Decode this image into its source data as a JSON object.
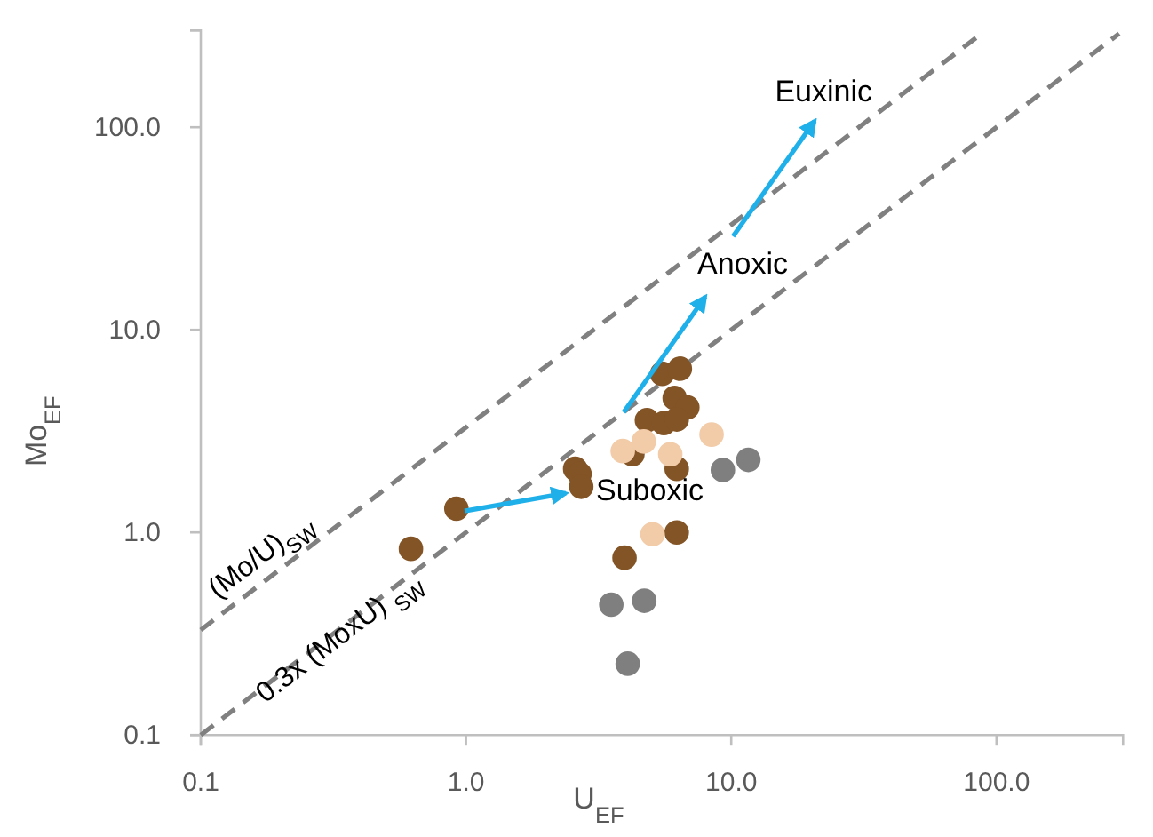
{
  "chart_data": {
    "type": "scatter",
    "xlabel": "U$_{EF}$",
    "ylabel": "Mo$_{EF}$",
    "log": "xy",
    "xlim": [
      0.1,
      300
    ],
    "ylim": [
      0.1,
      300
    ],
    "xticks": [
      0.1,
      {
        "value": 1,
        "label": "1.0"
      },
      {
        "value": 10,
        "label": "10.0"
      },
      {
        "value": 100,
        "label": "100.0"
      }
    ],
    "yticks": [
      0.1,
      {
        "value": 1,
        "label": "1.0"
      },
      {
        "value": 10,
        "label": "10.0"
      },
      {
        "value": 100,
        "label": "100.0"
      }
    ],
    "grid": false,
    "marker": "circle",
    "series": [
      {
        "type": "line",
        "name": "(Mo/U)$_{SW}$",
        "color": "#808080",
        "line_style": "dashed",
        "marker": "none",
        "x": [
          0.1,
          90
        ],
        "values": [
          0.33,
          297
        ]
      },
      {
        "type": "line",
        "name": "0.3x (MoxU) $_{SW}$",
        "color": "#808080",
        "line_style": "dashed",
        "marker": "none",
        "x": [
          0.1,
          290
        ],
        "values": [
          0.1,
          290
        ]
      },
      {
        "color": "#835426",
        "x": [
          0.62,
          0.92,
          2.58,
          2.68,
          2.72,
          3.96,
          4.24,
          4.81,
          5.49,
          6.4,
          6.12,
          6.83,
          5.57,
          6.23,
          6.23,
          6.23
        ],
        "values": [
          0.83,
          1.31,
          2.06,
          1.94,
          1.68,
          0.75,
          2.43,
          3.58,
          6.07,
          6.43,
          4.61,
          4.14,
          3.46,
          3.61,
          2.06,
          1.0
        ]
      },
      {
        "color": "#f2cba9",
        "x": [
          3.9,
          4.68,
          5.89,
          8.43,
          5.05
        ],
        "values": [
          2.52,
          2.81,
          2.43,
          3.04,
          0.98
        ]
      },
      {
        "color": "#7f7f7f",
        "x": [
          9.3,
          11.6,
          3.53,
          4.7,
          4.07
        ],
        "values": [
          2.03,
          2.28,
          0.44,
          0.46,
          0.225
        ]
      }
    ],
    "annotations": [
      {
        "text": "Suboxic",
        "x": 2.38,
        "y": 1.56
      },
      "Anoxic",
      "Euxinic"
    ]
  }
}
